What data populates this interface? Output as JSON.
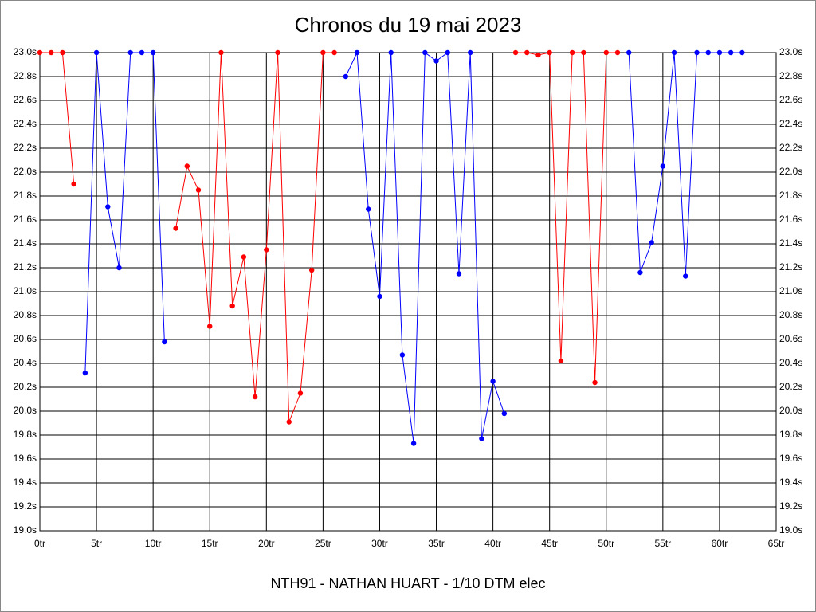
{
  "chart_data": {
    "type": "line",
    "title": "Chronos du 19 mai 2023",
    "xlabel": "NTH91 - NATHAN HUART - 1/10 DTM elec",
    "x": [
      0,
      1,
      2,
      3,
      4,
      5,
      6,
      7,
      8,
      9,
      10,
      11,
      12,
      13,
      14,
      15,
      16,
      17,
      18,
      19,
      20,
      21,
      22,
      23,
      24,
      25,
      26,
      27,
      28,
      29,
      30,
      31,
      32,
      33,
      34,
      35,
      36,
      37,
      38,
      39,
      40,
      41,
      42,
      43,
      44,
      45,
      46,
      47,
      48,
      49,
      50,
      51,
      52,
      53,
      54,
      55,
      56,
      57,
      58,
      59,
      60,
      61,
      62
    ],
    "series": [
      {
        "color": "#ff0000",
        "values": [
          23.0,
          23.0,
          23.0,
          21.9,
          null,
          null,
          null,
          null,
          null,
          null,
          null,
          null,
          21.53,
          22.05,
          21.85,
          20.71,
          23.0,
          20.88,
          21.29,
          20.12,
          21.35,
          23.0,
          19.91,
          20.15,
          21.18,
          23.0,
          23.0,
          null,
          null,
          null,
          null,
          null,
          null,
          null,
          null,
          null,
          null,
          null,
          null,
          null,
          null,
          null,
          23.0,
          23.0,
          22.98,
          23.0,
          20.42,
          23.0,
          23.0,
          20.24,
          23.0,
          23.0,
          null,
          null,
          null,
          null,
          null,
          null,
          null,
          null,
          null,
          null,
          null
        ]
      },
      {
        "color": "#0000ff",
        "values": [
          null,
          null,
          null,
          null,
          20.32,
          23.0,
          21.71,
          21.2,
          23.0,
          23.0,
          23.0,
          20.58,
          null,
          null,
          null,
          null,
          null,
          null,
          null,
          null,
          null,
          null,
          null,
          null,
          null,
          null,
          null,
          22.8,
          23.0,
          21.69,
          20.96,
          23.0,
          20.47,
          19.73,
          23.0,
          22.93,
          23.0,
          21.15,
          23.0,
          19.77,
          20.25,
          19.98,
          null,
          null,
          null,
          null,
          null,
          null,
          null,
          null,
          null,
          null,
          23.0,
          21.16,
          21.41,
          22.05,
          23.0,
          21.13,
          23.0,
          23.0,
          23.0,
          23.0,
          23.0
        ]
      }
    ],
    "xlim": [
      0,
      65
    ],
    "xticks": [
      {
        "value": 0,
        "label": "0tr"
      },
      {
        "value": 5,
        "label": "5tr"
      },
      {
        "value": 10,
        "label": "10tr"
      },
      {
        "value": 15,
        "label": "15tr"
      },
      {
        "value": 20,
        "label": "20tr"
      },
      {
        "value": 25,
        "label": "25tr"
      },
      {
        "value": 30,
        "label": "30tr"
      },
      {
        "value": 35,
        "label": "35tr"
      },
      {
        "value": 40,
        "label": "40tr"
      },
      {
        "value": 45,
        "label": "45tr"
      },
      {
        "value": 50,
        "label": "50tr"
      },
      {
        "value": 55,
        "label": "55tr"
      },
      {
        "value": 60,
        "label": "60tr"
      },
      {
        "value": 65,
        "label": "65tr"
      }
    ],
    "ylim": [
      19.0,
      23.0
    ],
    "yticks": [
      {
        "value": 19.0,
        "label": "19.0s"
      },
      {
        "value": 19.2,
        "label": "19.2s"
      },
      {
        "value": 19.4,
        "label": "19.4s"
      },
      {
        "value": 19.6,
        "label": "19.6s"
      },
      {
        "value": 19.8,
        "label": "19.8s"
      },
      {
        "value": 20.0,
        "label": "20.0s"
      },
      {
        "value": 20.2,
        "label": "20.2s"
      },
      {
        "value": 20.4,
        "label": "20.4s"
      },
      {
        "value": 20.6,
        "label": "20.6s"
      },
      {
        "value": 20.8,
        "label": "20.8s"
      },
      {
        "value": 21.0,
        "label": "21.0s"
      },
      {
        "value": 21.2,
        "label": "21.2s"
      },
      {
        "value": 21.4,
        "label": "21.4s"
      },
      {
        "value": 21.6,
        "label": "21.6s"
      },
      {
        "value": 21.8,
        "label": "21.8s"
      },
      {
        "value": 22.0,
        "label": "22.0s"
      },
      {
        "value": 22.2,
        "label": "22.2s"
      },
      {
        "value": 22.4,
        "label": "22.4s"
      },
      {
        "value": 22.6,
        "label": "22.6s"
      },
      {
        "value": 22.8,
        "label": "22.8s"
      },
      {
        "value": 23.0,
        "label": "23.0s"
      }
    ],
    "grid": true
  }
}
